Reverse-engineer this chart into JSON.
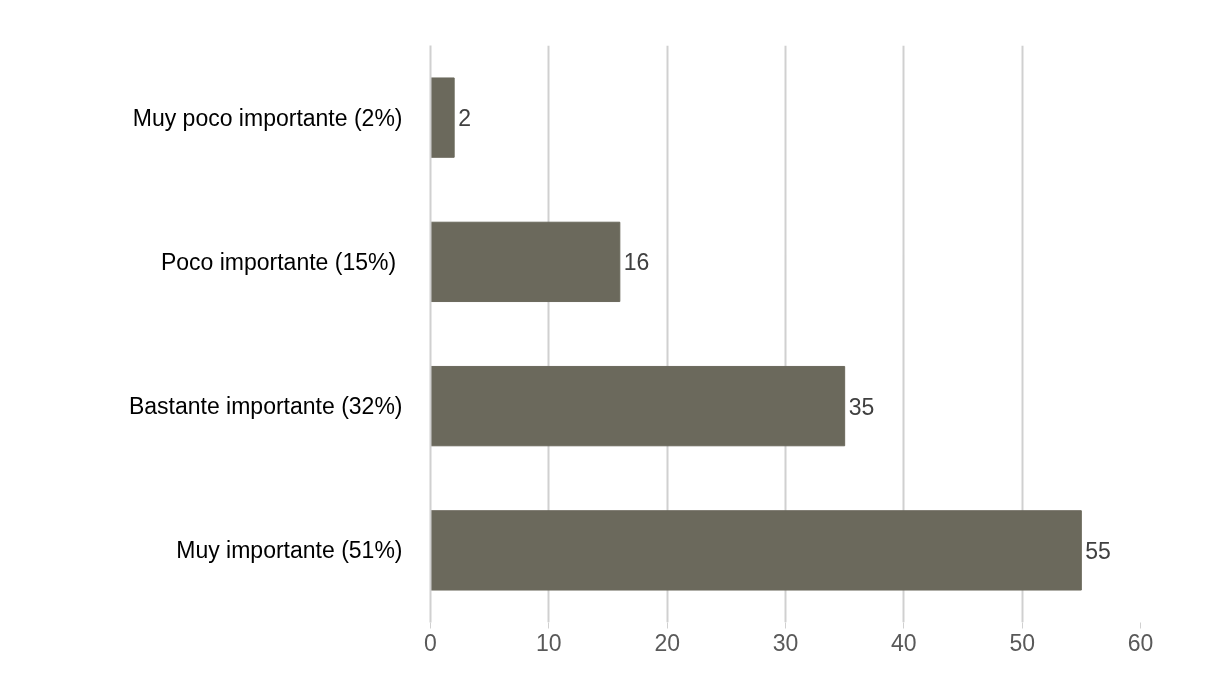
{
  "chart_data": {
    "type": "bar",
    "orientation": "horizontal",
    "categories": [
      "Muy poco importante (2%)",
      "Poco importante  (15%)",
      "Bastante importante (32%)",
      "Muy importante (51%)"
    ],
    "values": [
      2,
      16,
      35,
      55
    ],
    "color": "#6b695c",
    "data_labels": true,
    "xlim": [
      0,
      60
    ],
    "xticks": [
      0,
      10,
      20,
      30,
      40,
      50,
      60
    ],
    "grid": "x"
  }
}
